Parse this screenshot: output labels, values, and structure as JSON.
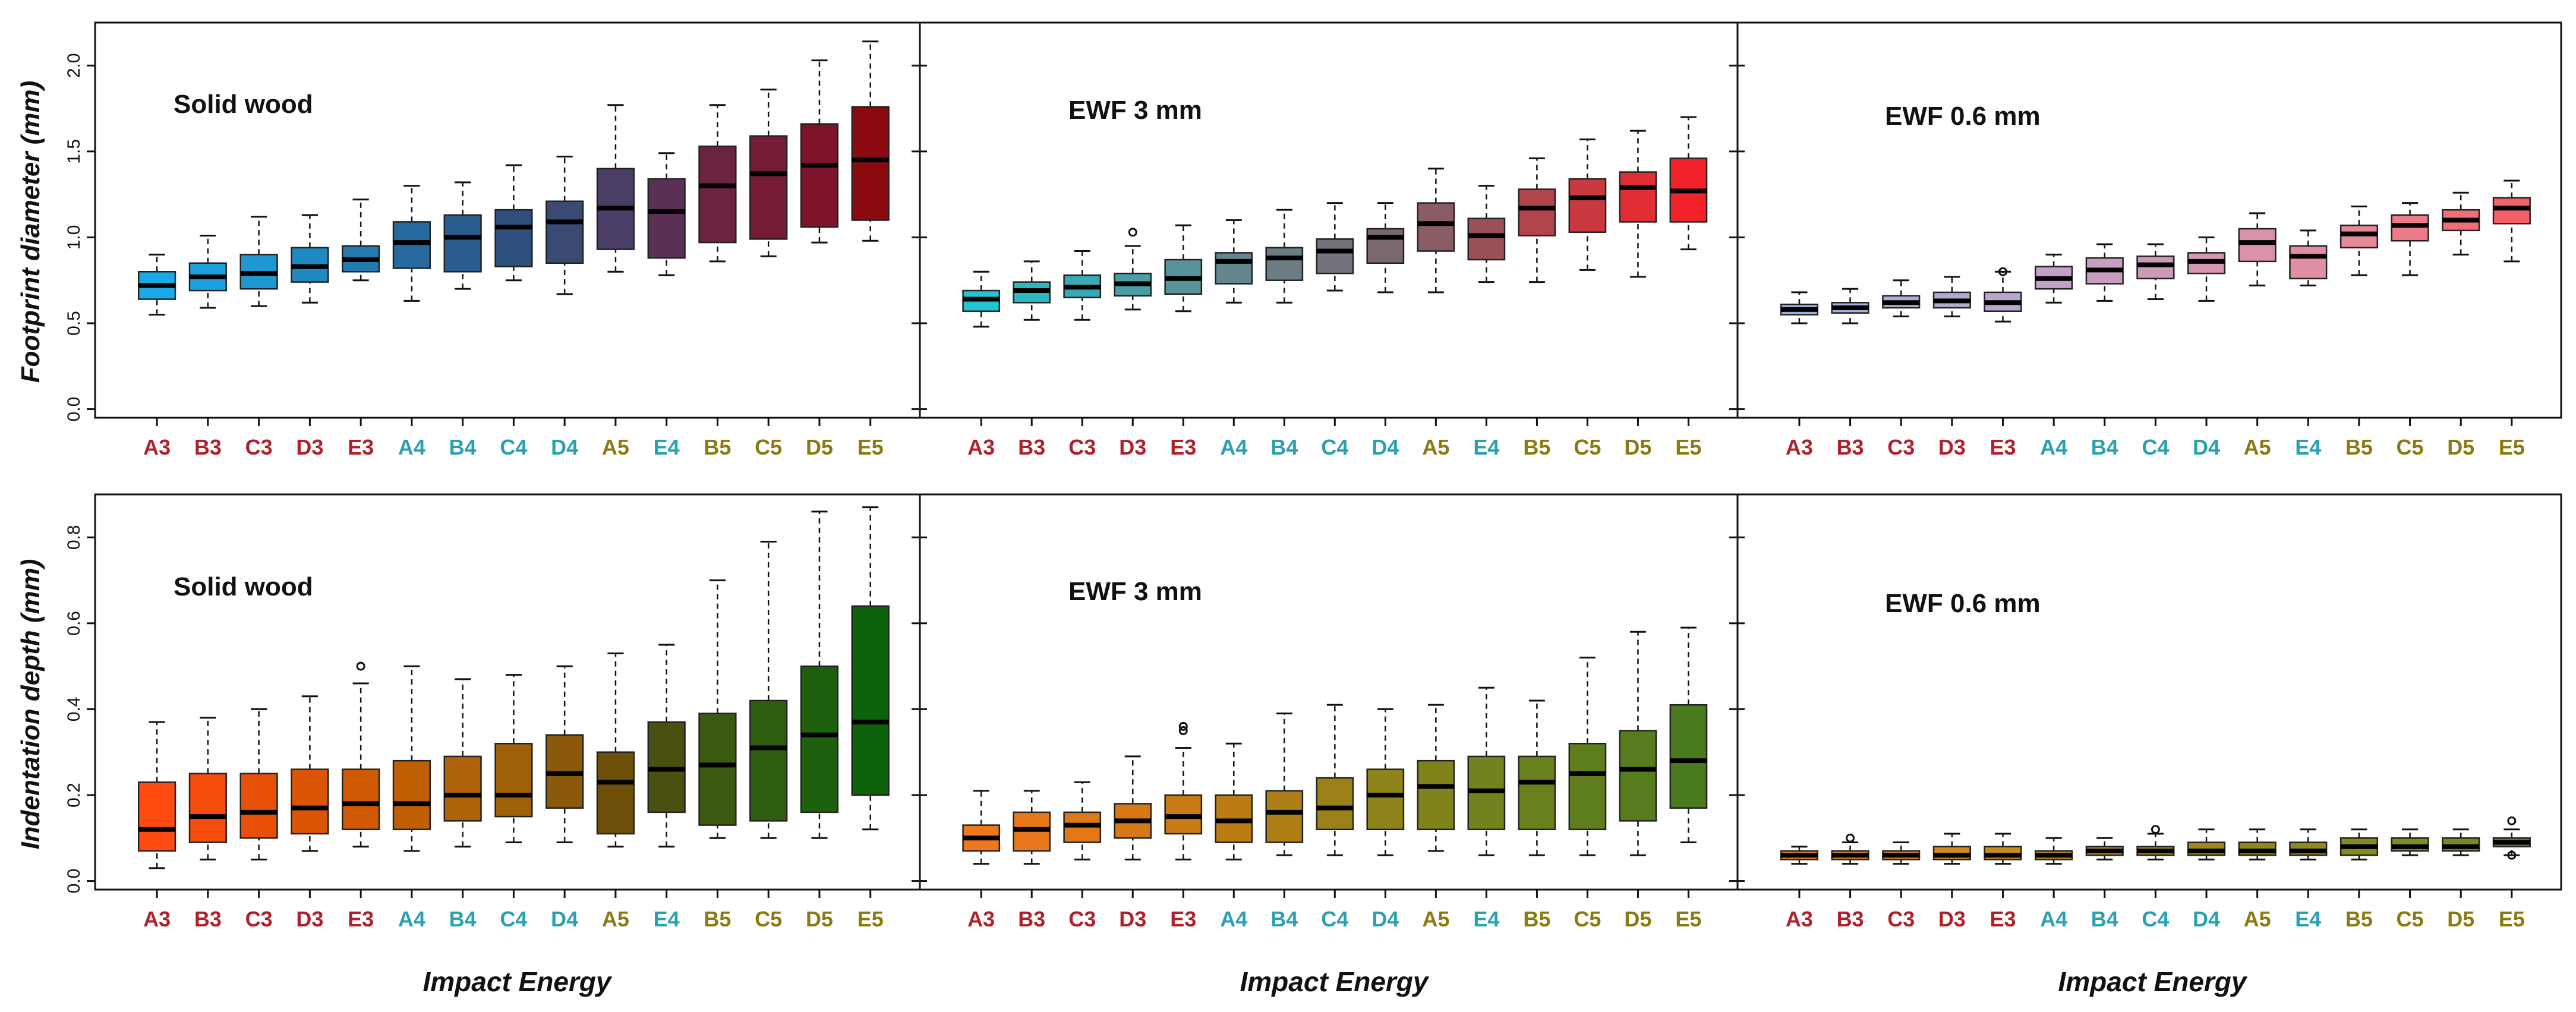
{
  "figure": {
    "y_labels": [
      "Footprint diameter (mm)",
      "Indentation depth (mm)"
    ],
    "x_label": "Impact Energy",
    "label_colors": {
      "3": "#b0202a",
      "4": "#2aa1b0",
      "5": "#8a7a10"
    }
  },
  "chart_data": [
    {
      "type": "box",
      "title": "Solid wood",
      "ylabel": "Footprint diameter (mm)",
      "xlabel": "",
      "ylim": [
        -0.05,
        2.25
      ],
      "yticks": [
        "0.0",
        "0.5",
        "1.0",
        "1.5",
        "2.0"
      ],
      "categories": [
        "A3",
        "B3",
        "C3",
        "D3",
        "E3",
        "A4",
        "B4",
        "C4",
        "D4",
        "A5",
        "E4",
        "B5",
        "C5",
        "D5",
        "E5"
      ],
      "box_colors": [
        "#1aaaea",
        "#1ca2e0",
        "#1f98d2",
        "#2189c2",
        "#2379b0",
        "#266aa0",
        "#2b5c8e",
        "#2f4f7e",
        "#3a4a72",
        "#4a3d66",
        "#5a3155",
        "#6a2442",
        "#761b36",
        "#7e142a",
        "#8a0a10"
      ],
      "stats": [
        [
          0.55,
          0.64,
          0.72,
          0.8,
          0.9
        ],
        [
          0.59,
          0.69,
          0.77,
          0.85,
          1.01
        ],
        [
          0.6,
          0.7,
          0.79,
          0.9,
          1.12
        ],
        [
          0.62,
          0.74,
          0.83,
          0.94,
          1.13
        ],
        [
          0.75,
          0.8,
          0.87,
          0.95,
          1.22
        ],
        [
          0.63,
          0.82,
          0.97,
          1.09,
          1.3
        ],
        [
          0.7,
          0.8,
          1.0,
          1.13,
          1.32
        ],
        [
          0.75,
          0.83,
          1.06,
          1.16,
          1.42
        ],
        [
          0.67,
          0.85,
          1.09,
          1.21,
          1.47
        ],
        [
          0.8,
          0.93,
          1.17,
          1.4,
          1.77
        ],
        [
          0.78,
          0.88,
          1.15,
          1.34,
          1.49
        ],
        [
          0.86,
          0.97,
          1.3,
          1.53,
          1.77
        ],
        [
          0.89,
          0.99,
          1.37,
          1.59,
          1.86
        ],
        [
          0.97,
          1.06,
          1.42,
          1.66,
          2.03
        ],
        [
          0.98,
          1.1,
          1.45,
          1.76,
          2.14
        ]
      ],
      "outliers": [
        [],
        [],
        [],
        [],
        [],
        [],
        [],
        [],
        [],
        [],
        [],
        [],
        [],
        [],
        []
      ]
    },
    {
      "type": "box",
      "title": "EWF 3 mm",
      "ylabel": "",
      "xlabel": "",
      "ylim": [
        -0.05,
        2.25
      ],
      "yticks": [
        "0.0",
        "0.5",
        "1.0",
        "1.5",
        "2.0"
      ],
      "categories": [
        "A3",
        "B3",
        "C3",
        "D3",
        "E3",
        "A4",
        "B4",
        "C4",
        "D4",
        "A5",
        "E4",
        "B5",
        "C5",
        "D5",
        "E5"
      ],
      "box_colors": [
        "#22c6d2",
        "#2cb8c2",
        "#38aab4",
        "#4a9ea6",
        "#58929a",
        "#63868e",
        "#6c7c84",
        "#74727a",
        "#7a686f",
        "#8a5c63",
        "#9a5057",
        "#b2444b",
        "#c83a40",
        "#e02e34",
        "#f2222a"
      ],
      "stats": [
        [
          0.48,
          0.57,
          0.64,
          0.69,
          0.8
        ],
        [
          0.52,
          0.62,
          0.69,
          0.74,
          0.86
        ],
        [
          0.52,
          0.65,
          0.71,
          0.78,
          0.92
        ],
        [
          0.58,
          0.66,
          0.73,
          0.79,
          0.95
        ],
        [
          0.57,
          0.67,
          0.76,
          0.87,
          1.07
        ],
        [
          0.62,
          0.73,
          0.86,
          0.91,
          1.1
        ],
        [
          0.62,
          0.75,
          0.88,
          0.94,
          1.16
        ],
        [
          0.69,
          0.79,
          0.92,
          0.99,
          1.2
        ],
        [
          0.68,
          0.85,
          1.0,
          1.05,
          1.2
        ],
        [
          0.68,
          0.92,
          1.08,
          1.2,
          1.4
        ],
        [
          0.74,
          0.87,
          1.01,
          1.11,
          1.3
        ],
        [
          0.74,
          1.01,
          1.17,
          1.28,
          1.46
        ],
        [
          0.81,
          1.03,
          1.23,
          1.34,
          1.57
        ],
        [
          0.77,
          1.09,
          1.29,
          1.38,
          1.62
        ],
        [
          0.93,
          1.09,
          1.27,
          1.46,
          1.7
        ]
      ],
      "outliers": [
        [],
        [],
        [],
        [
          1.03
        ],
        [],
        [],
        [],
        [],
        [],
        [],
        [],
        [],
        [],
        [],
        []
      ]
    },
    {
      "type": "box",
      "title": "EWF 0.6 mm",
      "ylabel": "",
      "xlabel": "",
      "ylim": [
        -0.05,
        2.25
      ],
      "yticks": [
        "0.0",
        "0.5",
        "1.0",
        "1.5",
        "2.0"
      ],
      "categories": [
        "A3",
        "B3",
        "C3",
        "D3",
        "E3",
        "A4",
        "B4",
        "C4",
        "D4",
        "A5",
        "E4",
        "B5",
        "C5",
        "D5",
        "E5"
      ],
      "box_colors": [
        "#9ab4e6",
        "#a2b0de",
        "#aaaed8",
        "#b2aad2",
        "#baa6cc",
        "#c2a2c6",
        "#c89ec0",
        "#ce9aba",
        "#d496b2",
        "#da92aa",
        "#e08ea2",
        "#e68a98",
        "#ec7c88",
        "#f26e78",
        "#f86068"
      ],
      "stats": [
        [
          0.5,
          0.55,
          0.58,
          0.61,
          0.68
        ],
        [
          0.5,
          0.56,
          0.59,
          0.62,
          0.7
        ],
        [
          0.54,
          0.59,
          0.62,
          0.66,
          0.75
        ],
        [
          0.54,
          0.59,
          0.63,
          0.68,
          0.77
        ],
        [
          0.51,
          0.57,
          0.62,
          0.68,
          0.8
        ],
        [
          0.62,
          0.7,
          0.76,
          0.83,
          0.9
        ],
        [
          0.63,
          0.73,
          0.81,
          0.88,
          0.96
        ],
        [
          0.64,
          0.76,
          0.84,
          0.89,
          0.96
        ],
        [
          0.63,
          0.79,
          0.86,
          0.91,
          1.0
        ],
        [
          0.72,
          0.86,
          0.97,
          1.05,
          1.14
        ],
        [
          0.72,
          0.76,
          0.89,
          0.95,
          1.04
        ],
        [
          0.78,
          0.94,
          1.02,
          1.07,
          1.18
        ],
        [
          0.78,
          0.98,
          1.07,
          1.13,
          1.2
        ],
        [
          0.9,
          1.04,
          1.1,
          1.16,
          1.26
        ],
        [
          0.86,
          1.08,
          1.17,
          1.23,
          1.33
        ]
      ],
      "outliers": [
        [],
        [],
        [],
        [],
        [
          0.8
        ],
        [],
        [],
        [],
        [],
        [],
        [],
        [],
        [],
        [],
        []
      ]
    },
    {
      "type": "box",
      "title": "Solid wood",
      "ylabel": "Indentation depth (mm)",
      "xlabel": "Impact Energy",
      "ylim": [
        -0.02,
        0.9
      ],
      "yticks": [
        "0.0",
        "0.2",
        "0.4",
        "0.6",
        "0.8"
      ],
      "categories": [
        "A3",
        "B3",
        "C3",
        "D3",
        "E3",
        "A4",
        "B4",
        "C4",
        "D4",
        "A5",
        "E4",
        "B5",
        "C5",
        "D5",
        "E5"
      ],
      "box_colors": [
        "#ff4a10",
        "#f44c0c",
        "#e85008",
        "#dc5406",
        "#d05a04",
        "#c05e04",
        "#b06206",
        "#a06008",
        "#8a5a0a",
        "#6e5008",
        "#4a5010",
        "#3a5a10",
        "#2e5e10",
        "#1e600e",
        "#0e620c"
      ],
      "stats": [
        [
          0.03,
          0.07,
          0.12,
          0.23,
          0.37
        ],
        [
          0.05,
          0.09,
          0.15,
          0.25,
          0.38
        ],
        [
          0.05,
          0.1,
          0.16,
          0.25,
          0.4
        ],
        [
          0.07,
          0.11,
          0.17,
          0.26,
          0.43
        ],
        [
          0.08,
          0.12,
          0.18,
          0.26,
          0.46
        ],
        [
          0.07,
          0.12,
          0.18,
          0.28,
          0.5
        ],
        [
          0.08,
          0.14,
          0.2,
          0.29,
          0.47
        ],
        [
          0.09,
          0.15,
          0.2,
          0.32,
          0.48
        ],
        [
          0.09,
          0.17,
          0.25,
          0.34,
          0.5
        ],
        [
          0.08,
          0.11,
          0.23,
          0.3,
          0.53
        ],
        [
          0.08,
          0.16,
          0.26,
          0.37,
          0.55
        ],
        [
          0.1,
          0.13,
          0.27,
          0.39,
          0.7
        ],
        [
          0.1,
          0.14,
          0.31,
          0.42,
          0.79
        ],
        [
          0.1,
          0.16,
          0.34,
          0.5,
          0.86
        ],
        [
          0.12,
          0.2,
          0.37,
          0.64,
          0.87
        ]
      ],
      "outliers": [
        [],
        [],
        [],
        [],
        [
          0.5
        ],
        [],
        [],
        [],
        [],
        [],
        [],
        [],
        [],
        [],
        []
      ]
    },
    {
      "type": "box",
      "title": "EWF 3 mm",
      "ylabel": "",
      "xlabel": "Impact Energy",
      "ylim": [
        -0.02,
        0.9
      ],
      "yticks": [
        "0.0",
        "0.2",
        "0.4",
        "0.6",
        "0.8"
      ],
      "categories": [
        "A3",
        "B3",
        "C3",
        "D3",
        "E3",
        "A4",
        "B4",
        "C4",
        "D4",
        "A5",
        "E4",
        "B5",
        "C5",
        "D5",
        "E5"
      ],
      "box_colors": [
        "#f0781c",
        "#e8781a",
        "#e07818",
        "#d67816",
        "#c87a14",
        "#bc7c14",
        "#ae7e16",
        "#9c8018",
        "#8e821a",
        "#80821c",
        "#74821e",
        "#68801e",
        "#5e7e1e",
        "#567c1e",
        "#4a7a1e"
      ],
      "stats": [
        [
          0.04,
          0.07,
          0.1,
          0.13,
          0.21
        ],
        [
          0.04,
          0.07,
          0.12,
          0.16,
          0.21
        ],
        [
          0.05,
          0.09,
          0.13,
          0.16,
          0.23
        ],
        [
          0.05,
          0.1,
          0.14,
          0.18,
          0.29
        ],
        [
          0.05,
          0.11,
          0.15,
          0.2,
          0.31
        ],
        [
          0.05,
          0.09,
          0.14,
          0.2,
          0.32
        ],
        [
          0.06,
          0.09,
          0.16,
          0.21,
          0.39
        ],
        [
          0.06,
          0.12,
          0.17,
          0.24,
          0.41
        ],
        [
          0.06,
          0.12,
          0.2,
          0.26,
          0.4
        ],
        [
          0.07,
          0.12,
          0.22,
          0.28,
          0.41
        ],
        [
          0.06,
          0.12,
          0.21,
          0.29,
          0.45
        ],
        [
          0.06,
          0.12,
          0.23,
          0.29,
          0.42
        ],
        [
          0.06,
          0.12,
          0.25,
          0.32,
          0.52
        ],
        [
          0.06,
          0.14,
          0.26,
          0.35,
          0.58
        ],
        [
          0.09,
          0.17,
          0.28,
          0.41,
          0.59
        ]
      ],
      "outliers": [
        [],
        [],
        [],
        [],
        [
          0.35,
          0.36
        ],
        [],
        [],
        [],
        [],
        [],
        [],
        [],
        [],
        [],
        []
      ]
    },
    {
      "type": "box",
      "title": "EWF 0.6 mm",
      "ylabel": "",
      "xlabel": "Impact Energy",
      "ylim": [
        -0.02,
        0.9
      ],
      "yticks": [
        "0.0",
        "0.2",
        "0.4",
        "0.6",
        "0.8"
      ],
      "categories": [
        "A3",
        "B3",
        "C3",
        "D3",
        "E3",
        "A4",
        "B4",
        "C4",
        "D4",
        "A5",
        "E4",
        "B5",
        "C5",
        "D5",
        "E5"
      ],
      "box_colors": [
        "#e8801e",
        "#e0841c",
        "#d8881c",
        "#d08a1c",
        "#c88c1c",
        "#c08c1c",
        "#b68c1c",
        "#ac8a1c",
        "#a2881c",
        "#98861c",
        "#908a1c",
        "#888c1c",
        "#808c1c",
        "#788c1c",
        "#708c1c"
      ],
      "stats": [
        [
          0.04,
          0.05,
          0.06,
          0.07,
          0.08
        ],
        [
          0.04,
          0.05,
          0.06,
          0.07,
          0.09
        ],
        [
          0.04,
          0.05,
          0.06,
          0.07,
          0.09
        ],
        [
          0.04,
          0.05,
          0.06,
          0.08,
          0.11
        ],
        [
          0.04,
          0.05,
          0.06,
          0.08,
          0.11
        ],
        [
          0.04,
          0.05,
          0.06,
          0.07,
          0.1
        ],
        [
          0.05,
          0.06,
          0.07,
          0.08,
          0.1
        ],
        [
          0.05,
          0.06,
          0.07,
          0.08,
          0.11
        ],
        [
          0.05,
          0.06,
          0.07,
          0.09,
          0.12
        ],
        [
          0.05,
          0.06,
          0.07,
          0.09,
          0.12
        ],
        [
          0.05,
          0.06,
          0.07,
          0.09,
          0.12
        ],
        [
          0.05,
          0.06,
          0.08,
          0.1,
          0.12
        ],
        [
          0.06,
          0.07,
          0.08,
          0.1,
          0.12
        ],
        [
          0.06,
          0.07,
          0.08,
          0.1,
          0.12
        ],
        [
          0.06,
          0.08,
          0.09,
          0.1,
          0.12
        ]
      ],
      "outliers": [
        [],
        [
          0.1
        ],
        [],
        [],
        [],
        [],
        [],
        [
          0.12
        ],
        [],
        [],
        [],
        [],
        [],
        [],
        [
          0.14,
          0.06
        ]
      ]
    }
  ]
}
